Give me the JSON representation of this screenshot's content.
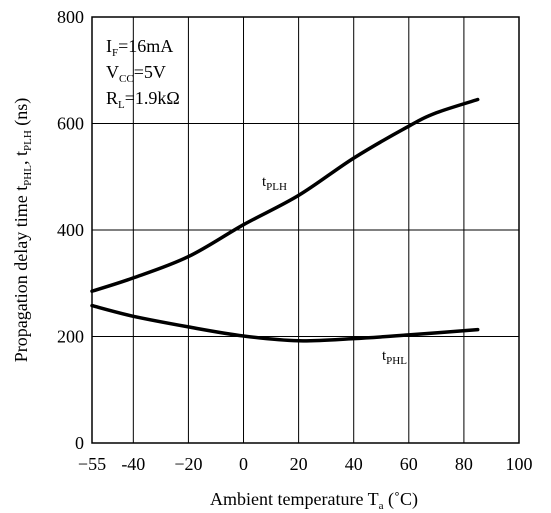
{
  "chart_data": {
    "type": "line",
    "title": "",
    "xlabel": {
      "main": "Ambient temperature  T",
      "sub": "a",
      "unit": " (˚C)"
    },
    "ylabel": {
      "p1": "Propagation delay time t",
      "s1": "PHL",
      "p2": ", t",
      "s2": "PLH",
      "p3": " (ns)"
    },
    "xlim": [
      -55,
      100
    ],
    "ylim": [
      0,
      800
    ],
    "grid": true,
    "x_ticks": [
      -55,
      -40,
      -20,
      0,
      20,
      40,
      60,
      80,
      100
    ],
    "x_tick_labels": [
      "−55",
      "-40",
      "−20",
      "0",
      "20",
      "40",
      "60",
      "80",
      "100"
    ],
    "y_ticks": [
      0,
      200,
      400,
      600,
      800
    ],
    "y_tick_labels": [
      "0",
      "200",
      "400",
      "600",
      "800"
    ],
    "conditions": [
      {
        "p": "I",
        "s": "F",
        "v": "=16mA"
      },
      {
        "p": "V",
        "s": "CC",
        "v": "=5V"
      },
      {
        "p": "R",
        "s": "L",
        "v": "=1.9kΩ"
      }
    ],
    "series": [
      {
        "name": {
          "p": "t",
          "s": "PLH"
        },
        "color": "#000000",
        "x": [
          -55,
          -40,
          -20,
          0,
          20,
          40,
          60,
          70,
          85
        ],
        "y": [
          285,
          310,
          350,
          410,
          465,
          535,
          595,
          620,
          645
        ]
      },
      {
        "name": {
          "p": "t",
          "s": "PHL"
        },
        "color": "#000000",
        "x": [
          -55,
          -40,
          -20,
          0,
          20,
          40,
          60,
          85
        ],
        "y": [
          258,
          238,
          218,
          201,
          192,
          196,
          203,
          213
        ]
      }
    ]
  }
}
